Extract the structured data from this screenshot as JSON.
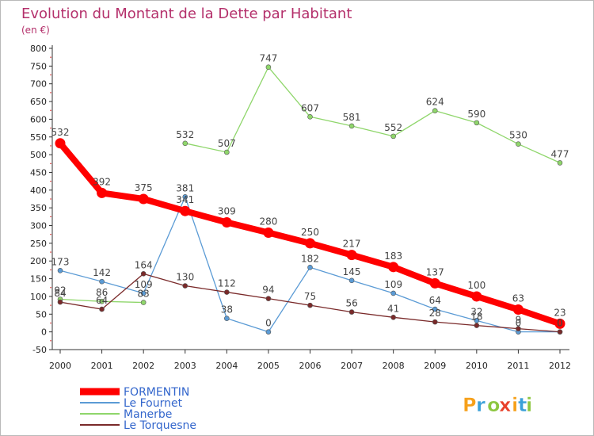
{
  "chart_data": {
    "type": "line",
    "title": "Evolution du Montant de la Dette par Habitant",
    "subtitle": "(en €)",
    "xlabel": "",
    "ylabel": "",
    "x": [
      2000,
      2001,
      2002,
      2003,
      2004,
      2005,
      2006,
      2007,
      2008,
      2009,
      2010,
      2011,
      2012
    ],
    "ylim": [
      -50,
      800
    ],
    "yticks": [
      -50,
      0,
      50,
      100,
      150,
      200,
      250,
      300,
      350,
      400,
      450,
      500,
      550,
      600,
      650,
      700,
      750,
      800
    ],
    "grid": false,
    "legend_position": "bottom-left",
    "series": [
      {
        "name": "FORMENTIN",
        "color": "#ff0000",
        "label_color": "#444444",
        "values": [
          532,
          392,
          375,
          341,
          309,
          280,
          250,
          217,
          183,
          137,
          100,
          63,
          23
        ],
        "labels": [
          "532",
          "392",
          "375",
          "341",
          "309",
          "280",
          "250",
          "217",
          "183",
          "137",
          "100",
          "63",
          "23"
        ]
      },
      {
        "name": "Le Fournet",
        "color": "#5b9bd5",
        "label_color": "#444444",
        "values": [
          173,
          142,
          109,
          381,
          38,
          0,
          182,
          145,
          109,
          64,
          32,
          0,
          0
        ],
        "labels": [
          "173",
          "142",
          "",
          "381",
          "38",
          "0",
          "182",
          "145",
          "109",
          "64",
          "32",
          "0",
          "0"
        ]
      },
      {
        "name": "Manerbe",
        "color": "#8fd66b",
        "label_color": "#444444",
        "values": [
          92,
          86,
          83,
          532,
          507,
          747,
          607,
          581,
          552,
          624,
          590,
          530,
          477
        ],
        "labels": [
          "92",
          "86",
          "83",
          "532",
          "507",
          "747",
          "607",
          "581",
          "552",
          "624",
          "590",
          "530",
          "477"
        ],
        "gaps": [
          2
        ]
      },
      {
        "name": "Le Torquesne",
        "color": "#7a2a2a",
        "label_color": "#444444",
        "values": [
          84,
          64,
          164,
          130,
          112,
          94,
          75,
          56,
          41,
          28,
          18,
          9,
          0
        ],
        "labels": [
          "84",
          "64",
          "164",
          "130",
          "112",
          "94",
          "75",
          "56",
          "41",
          "28",
          "18",
          "9",
          "0"
        ]
      }
    ],
    "extra_labels": [
      {
        "series": 1,
        "index": 2,
        "text": "109"
      }
    ]
  },
  "brand": {
    "logo_letters": [
      "P",
      "r",
      "o",
      "x",
      "i",
      "t",
      "i"
    ],
    "logo_colors": [
      "#f6a01a",
      "#3aa0d8",
      "#8cc63f",
      "#e8402a",
      "#f6a01a",
      "#3aa0d8",
      "#8cc63f"
    ]
  },
  "colors": {
    "title": "#b4306b",
    "subtitle": "#b4306b",
    "axis": "#333333",
    "tick_text": "#222222",
    "legend_text": "#3366cc"
  }
}
